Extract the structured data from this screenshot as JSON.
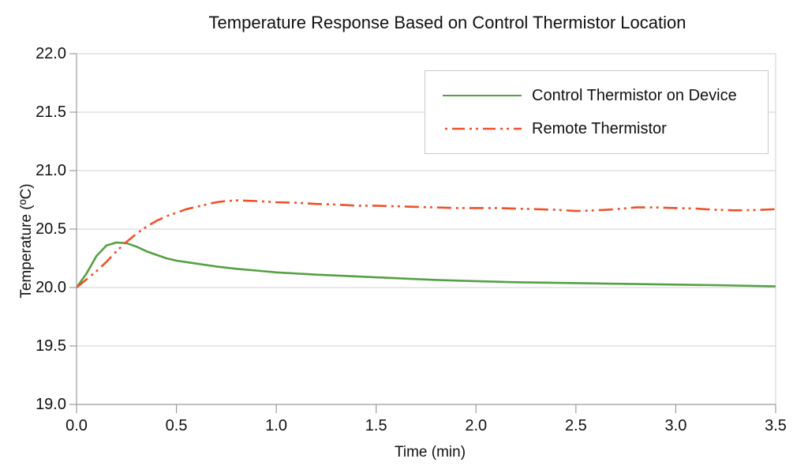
{
  "title": "Temperature Response Based on Control Thermistor Location",
  "axes": {
    "x": {
      "label": "Time (min)",
      "tick_labels": [
        "0.0",
        "0.5",
        "1.0",
        "1.5",
        "2.0",
        "2.5",
        "3.0",
        "3.5"
      ]
    },
    "y": {
      "label": "Temperature (ºC)",
      "tick_labels": [
        "22.0",
        "21.5",
        "21.0",
        "20.5",
        "20.0",
        "19.5",
        "19.0"
      ]
    }
  },
  "legend": {
    "items": [
      {
        "label": "Control Thermistor on Device",
        "color": "#55a044",
        "style": "solid"
      },
      {
        "label": "Remote Thermistor",
        "color": "#f0502a",
        "style": "dash-dot-dot"
      }
    ]
  },
  "colors": {
    "gridline": "#cfcfcf",
    "axis": "#9c9c9c",
    "frame_right": "#cfcfcf",
    "text": "#111111",
    "background": "#ffffff"
  },
  "chart_data": {
    "type": "line",
    "title": "Temperature Response Based on Control Thermistor Location",
    "xlabel": "Time (min)",
    "ylabel": "Temperature (ºC)",
    "xlim": [
      0.0,
      3.5
    ],
    "ylim": [
      19.0,
      22.0
    ],
    "x_ticks": [
      0.0,
      0.5,
      1.0,
      1.5,
      2.0,
      2.5,
      3.0,
      3.5
    ],
    "y_ticks": [
      22.0,
      21.5,
      21.0,
      20.5,
      20.0,
      19.5,
      19.0
    ],
    "grid": "horizontal",
    "legend_position": "top-right",
    "series": [
      {
        "name": "Control Thermistor on Device",
        "color": "#55a044",
        "line_style": "solid",
        "x": [
          0.0,
          0.05,
          0.1,
          0.15,
          0.2,
          0.25,
          0.3,
          0.35,
          0.4,
          0.45,
          0.5,
          0.6,
          0.7,
          0.8,
          0.9,
          1.0,
          1.2,
          1.4,
          1.6,
          1.8,
          2.0,
          2.2,
          2.4,
          2.6,
          2.8,
          3.0,
          3.2,
          3.5
        ],
        "y": [
          20.0,
          20.12,
          20.27,
          20.36,
          20.385,
          20.38,
          20.35,
          20.31,
          20.28,
          20.25,
          20.23,
          20.205,
          20.18,
          20.16,
          20.145,
          20.13,
          20.11,
          20.095,
          20.08,
          20.065,
          20.055,
          20.045,
          20.04,
          20.035,
          20.03,
          20.025,
          20.02,
          20.01
        ]
      },
      {
        "name": "Remote Thermistor",
        "color": "#f0502a",
        "line_style": "dash-dot-dot",
        "x": [
          0.0,
          0.05,
          0.1,
          0.15,
          0.2,
          0.25,
          0.3,
          0.35,
          0.4,
          0.45,
          0.5,
          0.55,
          0.6,
          0.65,
          0.7,
          0.75,
          0.8,
          0.9,
          1.0,
          1.1,
          1.2,
          1.3,
          1.4,
          1.5,
          1.6,
          1.7,
          1.8,
          1.9,
          2.0,
          2.1,
          2.2,
          2.3,
          2.4,
          2.5,
          2.6,
          2.7,
          2.8,
          2.9,
          3.0,
          3.1,
          3.2,
          3.3,
          3.4,
          3.5
        ],
        "y": [
          20.0,
          20.07,
          20.14,
          20.22,
          20.31,
          20.39,
          20.46,
          20.52,
          20.57,
          20.61,
          20.64,
          20.67,
          20.69,
          20.71,
          20.73,
          20.74,
          20.745,
          20.74,
          20.73,
          20.725,
          20.715,
          20.71,
          20.7,
          20.7,
          20.695,
          20.69,
          20.685,
          20.68,
          20.68,
          20.68,
          20.675,
          20.67,
          20.665,
          20.655,
          20.66,
          20.67,
          20.685,
          20.685,
          20.68,
          20.675,
          20.665,
          20.66,
          20.663,
          20.67
        ]
      }
    ]
  }
}
